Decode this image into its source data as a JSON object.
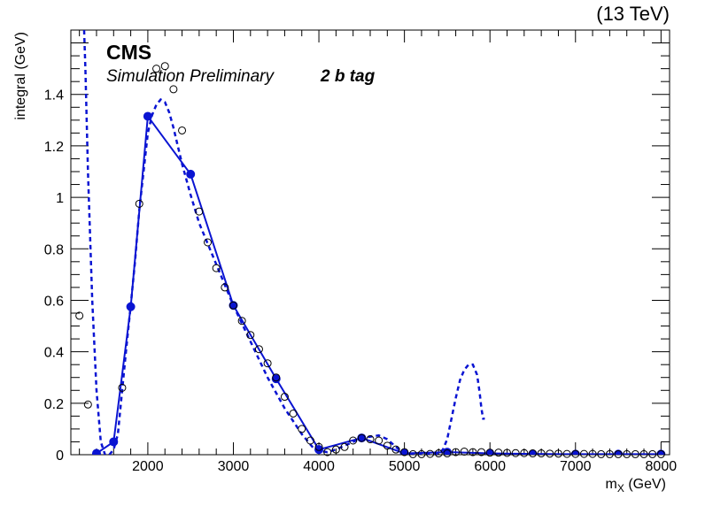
{
  "header": {
    "energy_label": "(13 TeV)",
    "experiment": "CMS",
    "status": "Simulation Preliminary",
    "category": "2 b tag"
  },
  "chart_data": {
    "type": "line",
    "title": "",
    "xlabel": "m_X (GeV)",
    "ylabel": "integral (GeV)",
    "xlim": [
      1100,
      8100
    ],
    "ylim": [
      0,
      1.65
    ],
    "x_ticks": [
      2000,
      3000,
      4000,
      5000,
      6000,
      7000,
      8000
    ],
    "y_ticks": [
      0,
      0.2,
      0.4,
      0.6,
      0.8,
      1,
      1.2,
      1.4
    ],
    "x_tick_labels": [
      "2000",
      "3000",
      "4000",
      "5000",
      "6000",
      "7000",
      "8000"
    ],
    "y_tick_labels": [
      "0",
      "0.2",
      "0.4",
      "0.6",
      "0.8",
      "1",
      "1.2",
      "1.4"
    ],
    "grid": false,
    "colors": {
      "fit": "#0a14d2",
      "open": "#000000"
    },
    "series": [
      {
        "name": "solid-points",
        "style": "line-markers-filled",
        "x": [
          1400,
          1600,
          1800,
          2000,
          2500,
          3000,
          3500,
          4000,
          4500,
          5000,
          5500,
          6000,
          6500,
          7000,
          7500,
          8000
        ],
        "y": [
          0.005,
          0.05,
          0.575,
          1.315,
          1.09,
          0.58,
          0.295,
          0.02,
          0.065,
          0.005,
          0.01,
          0.005,
          0.003,
          0.002,
          0.002,
          0.002
        ]
      },
      {
        "name": "open-points",
        "style": "markers-open",
        "x": [
          1200,
          1300,
          1700,
          1900,
          2100,
          2200,
          2300,
          2400,
          2600,
          2700,
          2800,
          2900,
          3000,
          3100,
          3200,
          3300,
          3400,
          3500,
          3600,
          3700,
          3800,
          3900,
          4000,
          4100,
          4200,
          4300,
          4400,
          4500,
          4600,
          4700,
          4800,
          4900,
          5000,
          5100,
          5200,
          5300,
          5400,
          5500,
          5600,
          5700,
          5800,
          5900,
          6000,
          6100,
          6200,
          6300,
          6400,
          6500,
          6600,
          6700,
          6800,
          6900,
          7000,
          7100,
          7200,
          7300,
          7400,
          7500,
          7600,
          7700,
          7800,
          7900,
          8000
        ],
        "y": [
          0.54,
          0.195,
          0.26,
          0.975,
          1.5,
          1.51,
          1.42,
          1.26,
          0.945,
          0.825,
          0.725,
          0.65,
          0.58,
          0.52,
          0.465,
          0.41,
          0.355,
          0.3,
          0.225,
          0.16,
          0.1,
          0.055,
          0.03,
          0.01,
          0.02,
          0.03,
          0.055,
          0.065,
          0.06,
          0.055,
          0.035,
          0.02,
          0.01,
          0.002,
          0.002,
          0.003,
          0.005,
          0.005,
          0.01,
          0.012,
          0.01,
          0.01,
          0.008,
          0.008,
          0.007,
          0.006,
          0.006,
          0.005,
          0.005,
          0.004,
          0.004,
          0.003,
          0.003,
          0.003,
          0.003,
          0.002,
          0.002,
          0.002,
          0.002,
          0.002,
          0.002,
          0.002,
          0.002
        ]
      },
      {
        "name": "dashed-curve",
        "style": "dashed-line",
        "x": [
          1255,
          1270,
          1300,
          1350,
          1400,
          1450,
          1500,
          1550,
          1600,
          1650,
          1700,
          1750,
          1800,
          1850,
          1900,
          1950,
          2000,
          2050,
          2100,
          2150,
          2200,
          2250,
          2300,
          2350,
          2400,
          2500,
          2600,
          2800,
          3000,
          3200,
          3400,
          3600,
          3800,
          3950,
          4000,
          4100,
          4200,
          4300,
          4400,
          4500,
          4600,
          4700,
          4800,
          4900,
          5000,
          5100,
          5200,
          5300,
          5400,
          5450,
          5500,
          5550,
          5600,
          5650,
          5700,
          5750,
          5800,
          5850,
          5880,
          5900,
          5920,
          5940
        ],
        "y": [
          1.65,
          1.5,
          1.1,
          0.6,
          0.25,
          0.05,
          0.0,
          0.0,
          0.02,
          0.08,
          0.25,
          0.42,
          0.58,
          0.75,
          0.95,
          1.1,
          1.25,
          1.32,
          1.36,
          1.38,
          1.37,
          1.33,
          1.27,
          1.2,
          1.13,
          1.01,
          0.9,
          0.74,
          0.58,
          0.44,
          0.3,
          0.18,
          0.08,
          0.02,
          0.015,
          0.01,
          0.02,
          0.035,
          0.05,
          0.065,
          0.07,
          0.075,
          0.06,
          0.03,
          0.005,
          0.003,
          0.002,
          0.003,
          0.005,
          0.02,
          0.06,
          0.14,
          0.22,
          0.29,
          0.33,
          0.35,
          0.35,
          0.31,
          0.24,
          0.18,
          0.14,
          0.14
        ]
      }
    ]
  }
}
